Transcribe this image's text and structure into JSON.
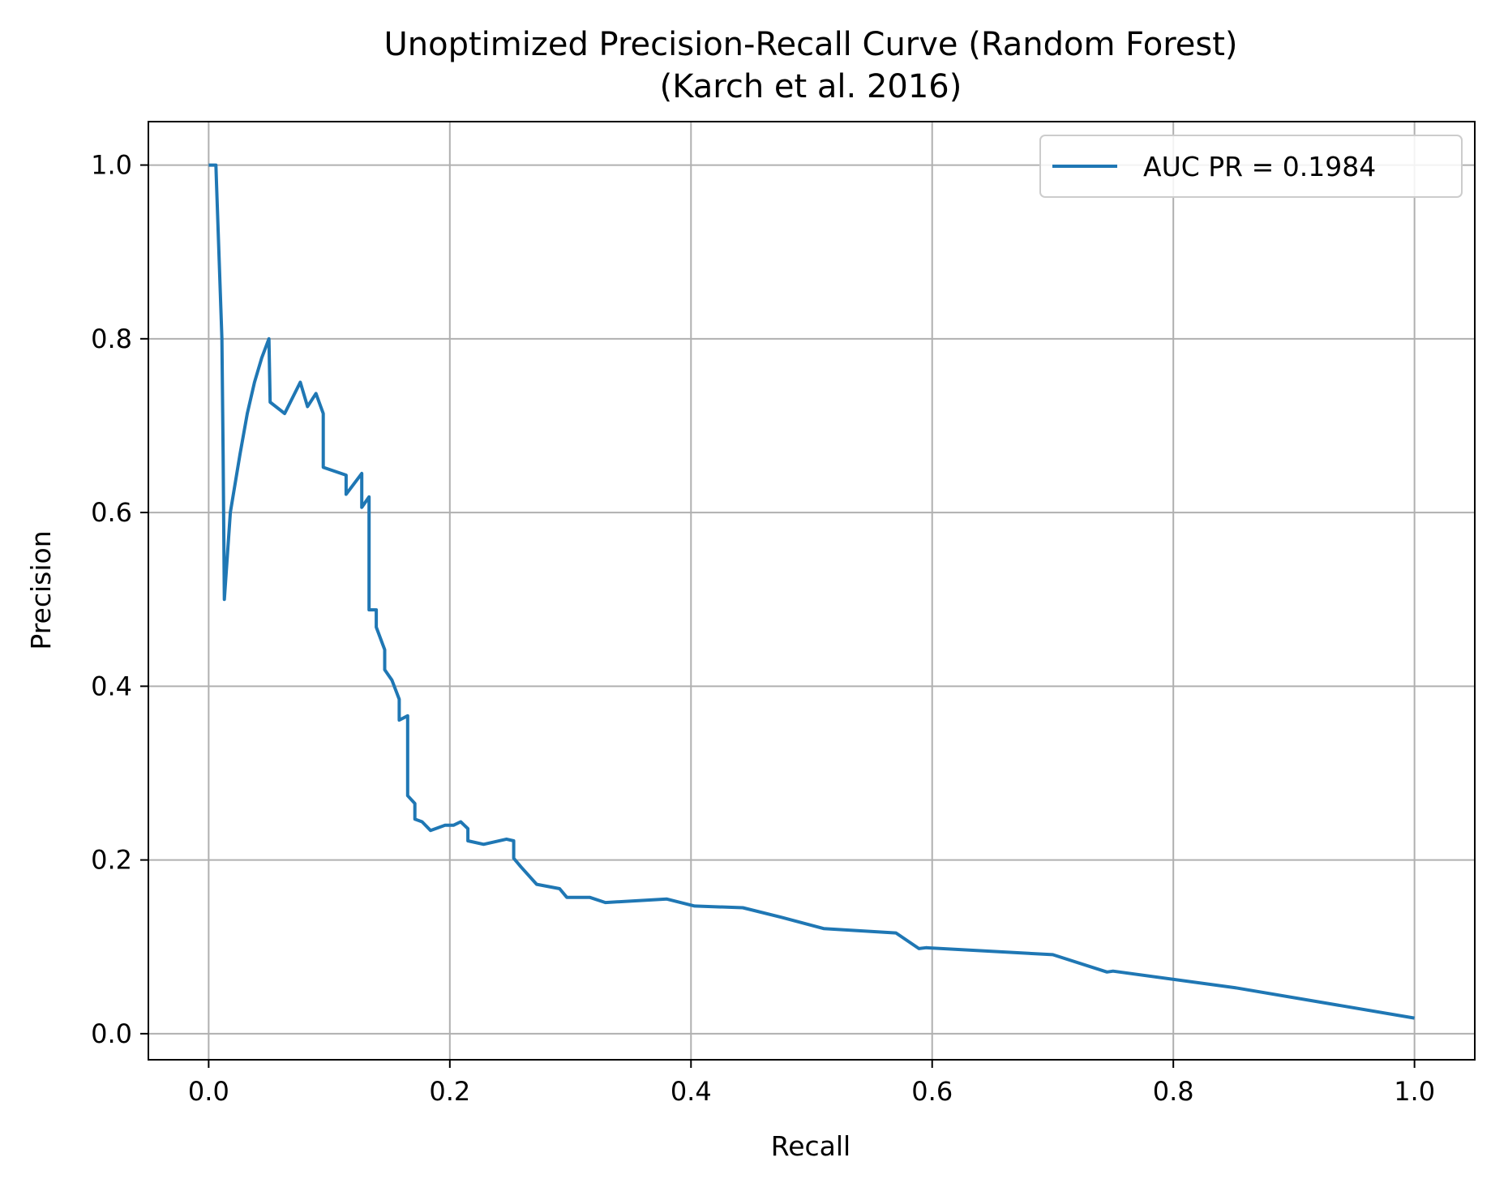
{
  "chart_data": {
    "type": "line",
    "title": "Unoptimized Precision-Recall Curve (Random Forest)",
    "subtitle": "(Karch et al. 2016)",
    "xlabel": "Recall",
    "ylabel": "Precision",
    "xlim": [
      -0.05,
      1.05
    ],
    "ylim": [
      -0.03,
      1.05
    ],
    "xticks": [
      0.0,
      0.2,
      0.4,
      0.6,
      0.8,
      1.0
    ],
    "xtick_labels": [
      "0.0",
      "0.2",
      "0.4",
      "0.6",
      "0.8",
      "1.0"
    ],
    "yticks": [
      0.0,
      0.2,
      0.4,
      0.6,
      0.8,
      1.0
    ],
    "ytick_labels": [
      "0.0",
      "0.2",
      "0.4",
      "0.6",
      "0.8",
      "1.0"
    ],
    "grid": true,
    "legend_position": "upper-right",
    "series": [
      {
        "name": "AUC PR = 0.1984",
        "color": "#1f77b4",
        "x": [
          0.0,
          0.006,
          0.0065,
          0.011,
          0.012,
          0.013,
          0.018,
          0.026,
          0.032,
          0.038,
          0.044,
          0.05,
          0.051,
          0.051,
          0.063,
          0.076,
          0.082,
          0.089,
          0.095,
          0.095,
          0.114,
          0.114,
          0.127,
          0.127,
          0.133,
          0.133,
          0.139,
          0.139,
          0.146,
          0.146,
          0.152,
          0.158,
          0.158,
          0.165,
          0.165,
          0.171,
          0.171,
          0.177,
          0.184,
          0.196,
          0.203,
          0.209,
          0.215,
          0.215,
          0.228,
          0.247,
          0.253,
          0.253,
          0.259,
          0.272,
          0.291,
          0.297,
          0.316,
          0.329,
          0.38,
          0.403,
          0.443,
          0.475,
          0.51,
          0.57,
          0.589,
          0.595,
          0.7,
          0.745,
          0.75,
          0.851,
          1.0
        ],
        "y": [
          1.0,
          1.0,
          0.98,
          0.8,
          0.667,
          0.5,
          0.6,
          0.667,
          0.714,
          0.75,
          0.778,
          0.8,
          0.727,
          0.727,
          0.714,
          0.75,
          0.722,
          0.737,
          0.714,
          0.652,
          0.643,
          0.621,
          0.645,
          0.606,
          0.618,
          0.488,
          0.488,
          0.468,
          0.442,
          0.419,
          0.407,
          0.385,
          0.361,
          0.366,
          0.274,
          0.265,
          0.247,
          0.244,
          0.234,
          0.24,
          0.24,
          0.244,
          0.236,
          0.222,
          0.218,
          0.224,
          0.222,
          0.202,
          0.192,
          0.172,
          0.167,
          0.157,
          0.157,
          0.151,
          0.155,
          0.147,
          0.145,
          0.134,
          0.121,
          0.116,
          0.098,
          0.099,
          0.091,
          0.071,
          0.072,
          0.053,
          0.018
        ]
      }
    ]
  }
}
